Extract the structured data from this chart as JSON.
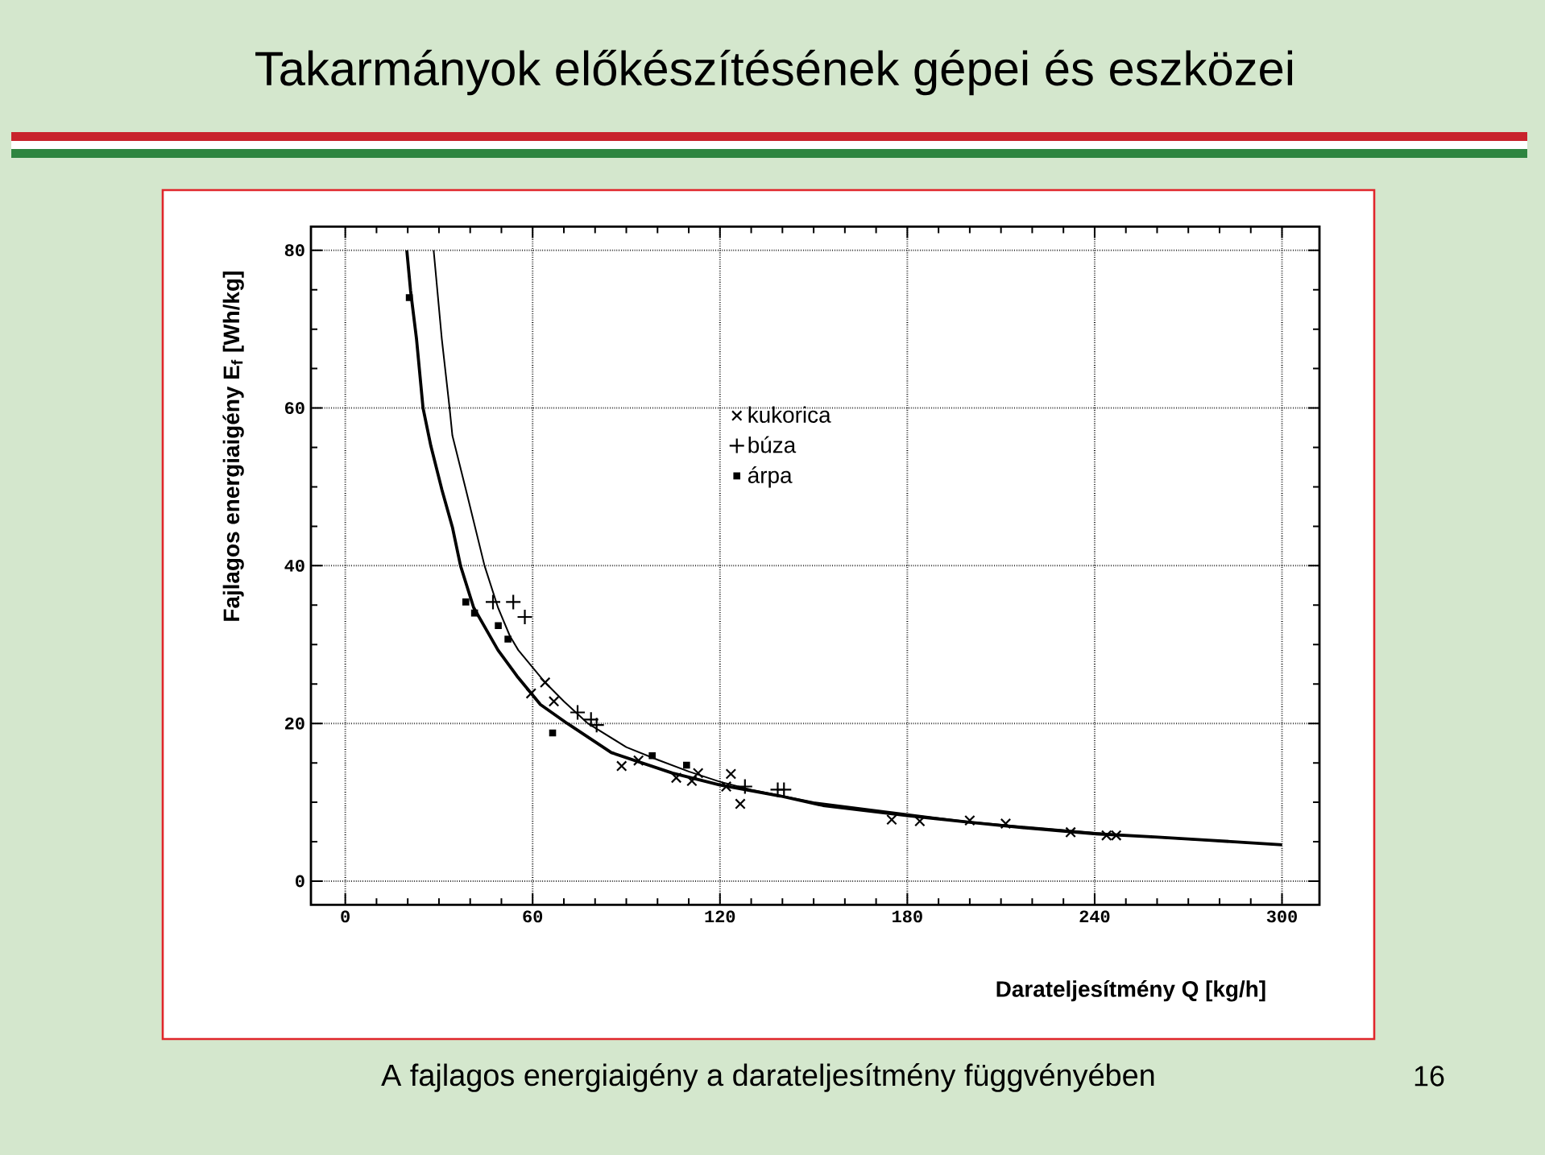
{
  "chart_data": {
    "type": "scatter",
    "title": "Takarmányok előkészítésének gépei és eszközei",
    "xlabel": "Darateljesítmény Q [kg/h]",
    "ylabel": "Fajlagos energiaigény E$_{f}$ [Wh/kg]",
    "annotations": [
      "A fajlagos energiaigény a darateljesítmény függvényében",
      "16"
    ],
    "xlim": [
      -11,
      312
    ],
    "ylim": [
      -3,
      83
    ],
    "xticks": [
      0,
      60,
      120,
      180,
      240,
      300
    ],
    "yticks": [
      0,
      20,
      40,
      60,
      80
    ],
    "grid": true,
    "legend": "top",
    "series": [
      {
        "name": "kukorica",
        "color": "#000000",
        "marker": "cross",
        "x": [
          59.5,
          64,
          66.8,
          88.5,
          93.9,
          106,
          111,
          113,
          122,
          123.5,
          126.5,
          175,
          184,
          200,
          211.5,
          232.3,
          243.8,
          246.9
        ],
        "values": [
          23.8,
          25.2,
          22.8,
          14.6,
          15.3,
          13.1,
          12.7,
          13.7,
          12.0,
          13.6,
          9.8,
          7.8,
          7.6,
          7.7,
          7.3,
          6.2,
          5.8,
          5.8
        ]
      },
      {
        "name": "búza",
        "color": "#000000",
        "marker": "plus",
        "x": [
          47.3,
          53.8,
          57.5,
          74.4,
          78.7,
          80.5,
          128,
          138.5,
          140.5
        ],
        "values": [
          35.4,
          35.4,
          33.5,
          21.4,
          20.5,
          19.8,
          12.0,
          11.6,
          11.6
        ]
      },
      {
        "name": "árpa",
        "color": "#000000",
        "marker": "square",
        "x": [
          20.5,
          38.6,
          41.4,
          49,
          52.1,
          66.4,
          98.3,
          109.3
        ],
        "values": [
          74,
          35.4,
          34.0,
          32.4,
          30.7,
          18.8,
          15.9,
          14.7
        ]
      },
      {
        "type": "line",
        "color": "#000000",
        "marker": "none",
        "line_style": "solid",
        "x": [
          19.7,
          20.9,
          22.8,
          24.9,
          27.4,
          30.9,
          34.3,
          36.9,
          41.1,
          48.9,
          55,
          62.5,
          71.1,
          85.2,
          104.8,
          120,
          139.3,
          153,
          180,
          199.3,
          216.4,
          240.4,
          259.2,
          276.3,
          300
        ],
        "values": [
          80,
          74.9,
          68.8,
          60,
          55.2,
          49.7,
          44.9,
          40,
          34.7,
          29.3,
          26,
          22.4,
          20,
          16.3,
          13.7,
          12.2,
          10.8,
          9.6,
          8.3,
          7.5,
          6.8,
          6.0,
          5.6,
          5.2,
          4.6
        ]
      },
      {
        "type": "line",
        "color": "#000000",
        "marker": "none",
        "line_style": "solid",
        "x": [
          28.3,
          30.9,
          33.4,
          34.3,
          38.6,
          44.6,
          48.9,
          52.7,
          55.4,
          64,
          70,
          77.7,
          90,
          100,
          110,
          120,
          130,
          150,
          200,
          250,
          300
        ],
        "values": [
          80,
          68.8,
          60,
          56.5,
          49.7,
          40,
          34.7,
          31.1,
          29.3,
          25.2,
          22.8,
          20,
          17,
          15.4,
          13.9,
          12.6,
          11.6,
          10,
          7.5,
          5.8,
          4.6
        ]
      }
    ]
  }
}
